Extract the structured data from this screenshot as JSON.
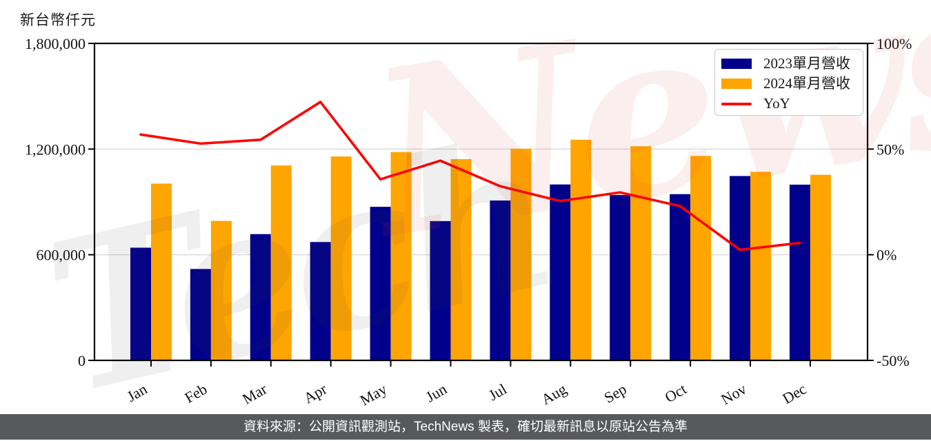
{
  "axis_unit_label": "新台幣仟元",
  "watermark": {
    "full_text": "TechNews",
    "left_text": "Tech",
    "right_text": "News"
  },
  "legend": {
    "items": [
      "2023單月營收",
      "2024單月營收",
      "YoY"
    ]
  },
  "footer": {
    "text": "資料來源：公開資訊觀測站，TechNews 製表，確切最新訊息以原站公告為準"
  },
  "colors": {
    "bar_2023": "#00008B",
    "bar_2024": "#FFA500",
    "yoy_line": "#FF0000",
    "grid": "#D9D9D9",
    "axis": "#000000",
    "footer_bg": "#58595B",
    "legend_border": "#C9C9C9",
    "watermark_gray": "rgba(70,70,70,0.085)",
    "watermark_pink": "rgba(210,70,70,0.095)"
  },
  "chart_data": {
    "type": "bar+line",
    "title": "",
    "categories": [
      "Jan",
      "Feb",
      "Mar",
      "Apr",
      "May",
      "Jun",
      "Jul",
      "Aug",
      "Sep",
      "Oct",
      "Nov",
      "Dec"
    ],
    "series": [
      {
        "name": "2023單月營收",
        "type": "bar",
        "color": "#00008B",
        "unit": "NTD thousand",
        "axis": "left",
        "values": [
          640000,
          519000,
          717000,
          672000,
          872000,
          791000,
          908000,
          999000,
          939000,
          944000,
          1047000,
          998000
        ]
      },
      {
        "name": "2024單月營收",
        "type": "bar",
        "color": "#FFA500",
        "unit": "NTD thousand",
        "axis": "left",
        "values": [
          1004000,
          792000,
          1107000,
          1158000,
          1183000,
          1143000,
          1202000,
          1253000,
          1216000,
          1161000,
          1071000,
          1054000
        ]
      },
      {
        "name": "YoY",
        "type": "line",
        "color": "#FF0000",
        "unit": "percent",
        "axis": "right",
        "values": [
          56.9,
          52.6,
          54.4,
          72.3,
          35.7,
          44.5,
          32.4,
          25.4,
          29.5,
          23.0,
          2.3,
          5.6
        ]
      }
    ],
    "left_axis": {
      "title": "新台幣仟元",
      "range": [
        0,
        1800000
      ],
      "ticks": [
        {
          "value": 0,
          "label": "0"
        },
        {
          "value": 600000,
          "label": "600,000"
        },
        {
          "value": 1200000,
          "label": "1,200,000"
        },
        {
          "value": 1800000,
          "label": "1,800,000"
        }
      ],
      "gridlines": [
        600000,
        1200000
      ]
    },
    "right_axis": {
      "range": [
        -50,
        100
      ],
      "ticks": [
        {
          "value": -50,
          "label": "-50%"
        },
        {
          "value": 0,
          "label": "0%"
        },
        {
          "value": 50,
          "label": "50%"
        },
        {
          "value": 100,
          "label": "100%"
        }
      ]
    },
    "legend_position": "top-right",
    "grid": "horizontal"
  }
}
